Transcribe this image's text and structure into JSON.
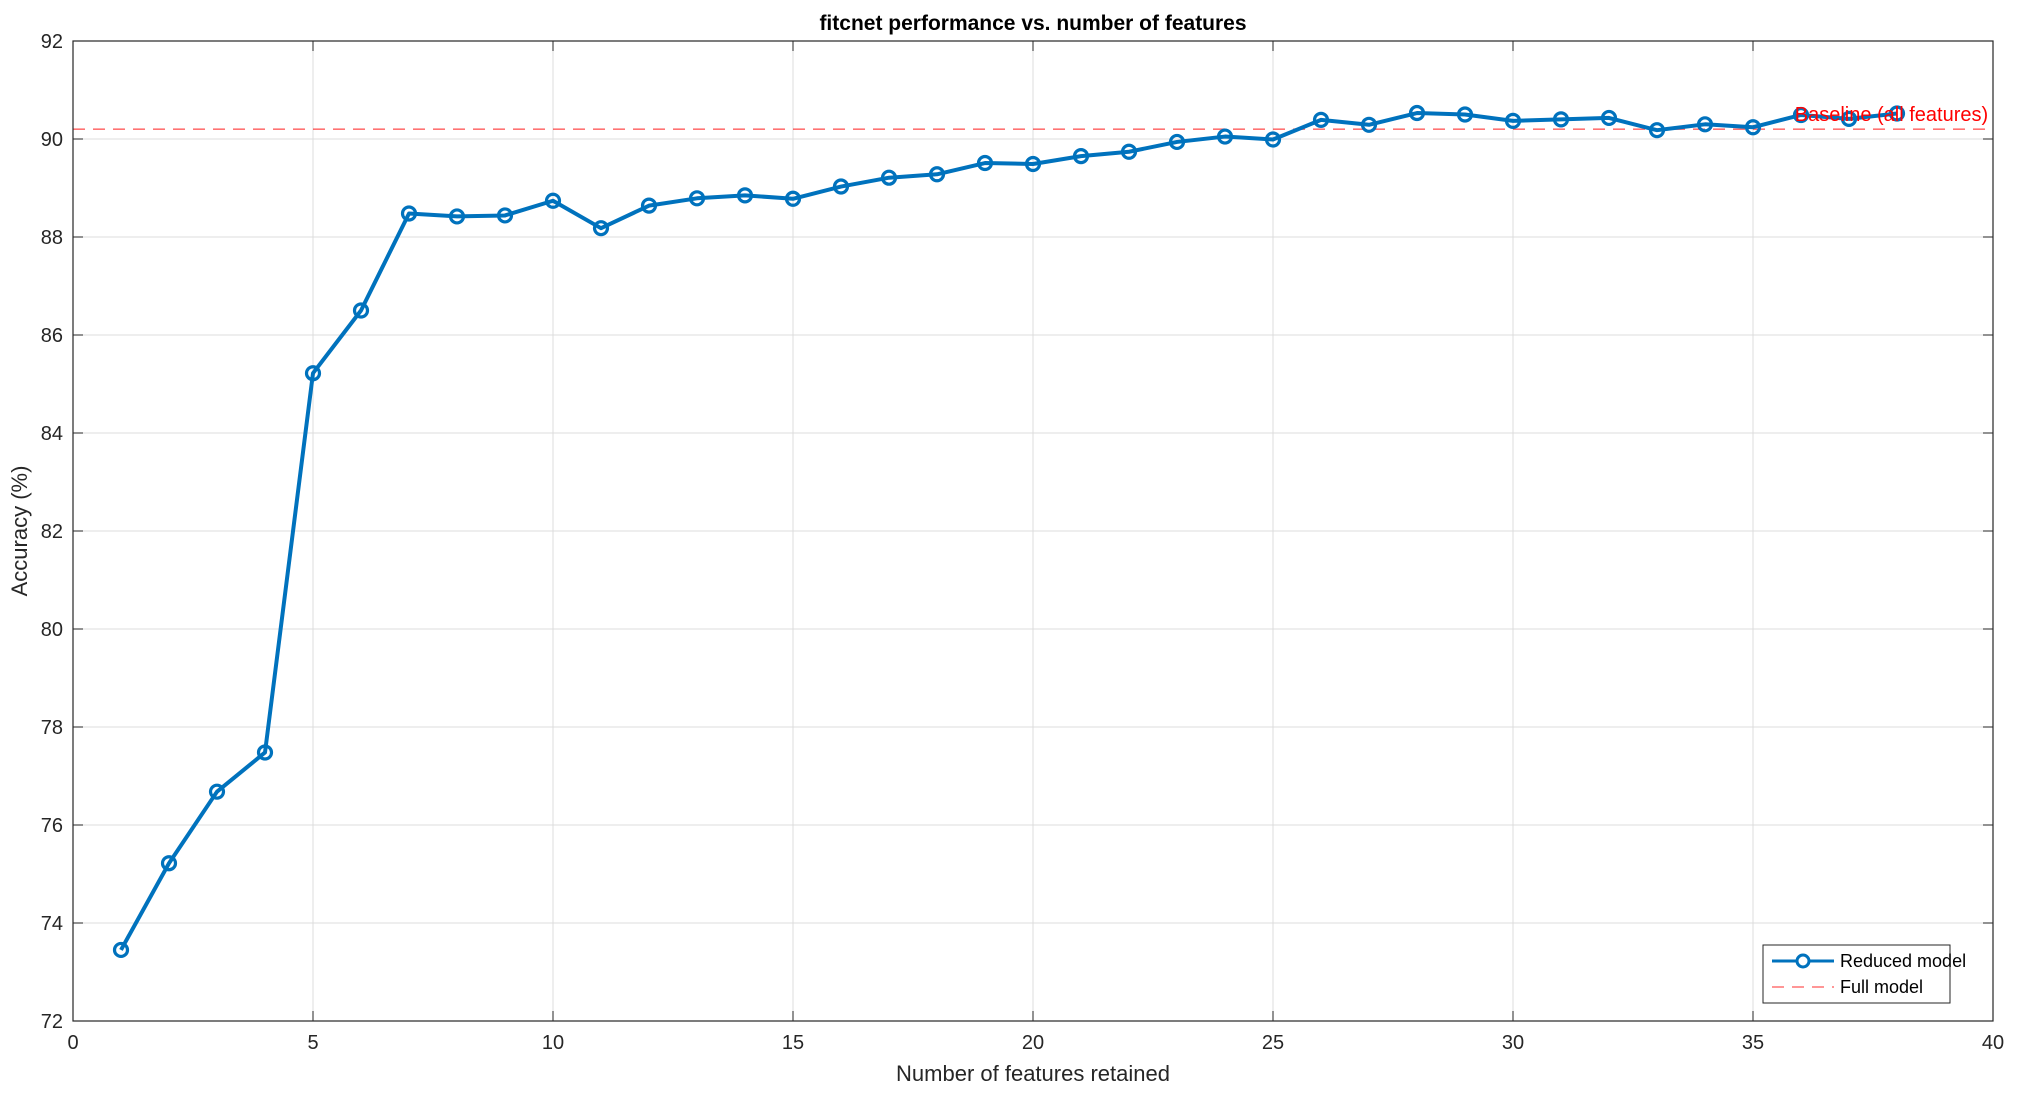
{
  "chart_data": {
    "type": "line",
    "title": "fitcnet performance vs. number of features",
    "xlabel": "Number of features retained",
    "ylabel": "Accuracy (%)",
    "xlim": [
      0,
      40
    ],
    "ylim": [
      72,
      92
    ],
    "xticks": [
      0,
      5,
      10,
      15,
      20,
      25,
      30,
      35,
      40
    ],
    "yticks": [
      72,
      74,
      76,
      78,
      80,
      82,
      84,
      86,
      88,
      90,
      92
    ],
    "grid": true,
    "legend_position": "bottom-right",
    "series": [
      {
        "name": "Reduced model",
        "color": "#0072BD",
        "marker": "circle",
        "x": [
          1,
          2,
          3,
          4,
          5,
          6,
          7,
          8,
          9,
          10,
          11,
          12,
          13,
          14,
          15,
          16,
          17,
          18,
          19,
          20,
          21,
          22,
          23,
          24,
          25,
          26,
          27,
          28,
          29,
          30,
          31,
          32,
          33,
          34,
          35,
          36,
          37,
          38
        ],
        "y": [
          73.45,
          75.22,
          76.68,
          77.48,
          85.22,
          86.5,
          88.48,
          88.42,
          88.44,
          88.74,
          88.18,
          88.64,
          88.79,
          88.85,
          88.78,
          89.03,
          89.21,
          89.28,
          89.51,
          89.49,
          89.65,
          89.74,
          89.94,
          90.05,
          89.99,
          90.39,
          90.29,
          90.53,
          90.5,
          90.37,
          90.4,
          90.43,
          90.18,
          90.3,
          90.24,
          90.49,
          90.41,
          90.52
        ]
      },
      {
        "name": "Full model",
        "color": "#FF0000",
        "style": "dashed",
        "y_constant": 90.2
      }
    ],
    "annotations": [
      {
        "text": "Baseline (all features)",
        "x": 39.9,
        "y": 90.2,
        "color": "#FF0000"
      }
    ]
  }
}
